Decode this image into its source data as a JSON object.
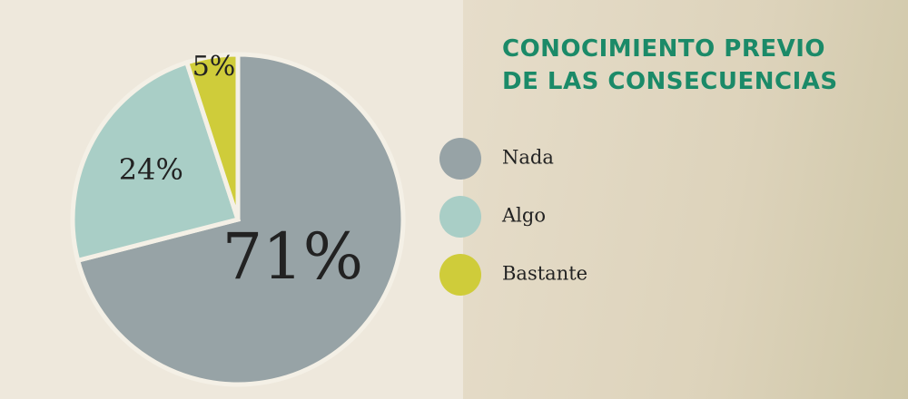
{
  "chart_data": {
    "type": "pie",
    "title": "CONOCIMIENTO PREVIO\nDE LAS CONSECUENCIAS",
    "categories": [
      "Nada",
      "Algo",
      "Bastante"
    ],
    "values": [
      71,
      24,
      5
    ],
    "value_labels": [
      "71%",
      "24%",
      "5%"
    ],
    "colors": [
      "#97a3a6",
      "#a9cec6",
      "#cfcc3a"
    ],
    "legend": "right"
  }
}
